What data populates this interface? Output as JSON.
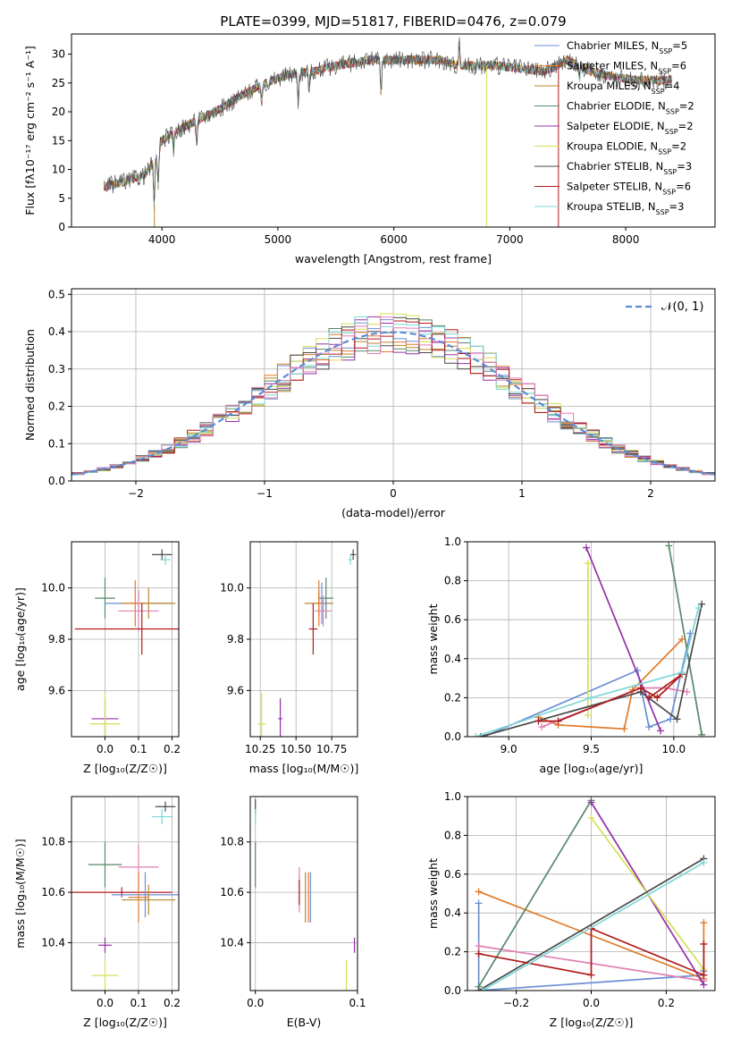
{
  "figure": {
    "title": "PLATE=0399, MJD=51817, FIBERID=0476, z=0.079"
  },
  "colors": {
    "Chabrier MILES": "#6a8fd6",
    "Salpeter MILES": "#e07b2b",
    "Kroupa MILES": "#b8872a",
    "Chabrier ELODIE": "#55896a",
    "Salpeter ELODIE": "#9530a8",
    "Kroupa ELODIE": "#d6e055",
    "Chabrier STELIB": "#4a4a4a",
    "Salpeter STELIB": "#b01c1c",
    "Kroupa STELIB": "#7fd6d6",
    "extra": "#e07fb5"
  },
  "chart_data": [
    {
      "id": "spectrum",
      "type": "line",
      "xlabel": "wavelength [Angstrom, rest frame]",
      "ylabel": "Flux [fλ10⁻¹⁷ erg cm⁻² s⁻¹ A⁻¹]",
      "xlim": [
        3220,
        8770
      ],
      "ylim": [
        0,
        33.5
      ],
      "xticks": [
        4000,
        5000,
        6000,
        7000,
        8000
      ],
      "yticks": [
        0,
        5,
        10,
        15,
        20,
        25,
        30
      ],
      "legend_position": "right",
      "legend": [
        {
          "label": "Chabrier MILES, N",
          "sub": "SSP",
          "tail": "=5",
          "key": "Chabrier MILES"
        },
        {
          "label": "Salpeter MILES, N",
          "sub": "SSP",
          "tail": "=6",
          "key": "Salpeter MILES"
        },
        {
          "label": "Kroupa MILES, N",
          "sub": "SSP",
          "tail": "=4",
          "key": "Kroupa MILES"
        },
        {
          "label": "Chabrier ELODIE, N",
          "sub": "SSP",
          "tail": "=2",
          "key": "Chabrier ELODIE"
        },
        {
          "label": "Salpeter ELODIE, N",
          "sub": "SSP",
          "tail": "=2",
          "key": "Salpeter ELODIE"
        },
        {
          "label": "Kroupa ELODIE, N",
          "sub": "SSP",
          "tail": "=2",
          "key": "Kroupa ELODIE"
        },
        {
          "label": "Chabrier STELIB, N",
          "sub": "SSP",
          "tail": "=3",
          "key": "Chabrier STELIB"
        },
        {
          "label": "Salpeter STELIB, N",
          "sub": "SSP",
          "tail": "=6",
          "key": "Salpeter STELIB"
        },
        {
          "label": "Kroupa STELIB, N",
          "sub": "SSP",
          "tail": "=3",
          "key": "Kroupa STELIB"
        }
      ],
      "continuum": [
        [
          3500,
          7
        ],
        [
          3700,
          8
        ],
        [
          3850,
          9
        ],
        [
          3950,
          12
        ],
        [
          4000,
          15
        ],
        [
          4150,
          17
        ],
        [
          4300,
          18.5
        ],
        [
          4500,
          20.5
        ],
        [
          4700,
          23
        ],
        [
          4900,
          25
        ],
        [
          5100,
          26.5
        ],
        [
          5300,
          27
        ],
        [
          5500,
          28
        ],
        [
          5800,
          29
        ],
        [
          6000,
          29
        ],
        [
          6200,
          29
        ],
        [
          6400,
          29
        ],
        [
          6550,
          28
        ],
        [
          6700,
          28
        ],
        [
          6900,
          28
        ],
        [
          7100,
          27.5
        ],
        [
          7300,
          27
        ],
        [
          7500,
          29
        ],
        [
          7700,
          27
        ],
        [
          7900,
          26
        ],
        [
          8100,
          25.5
        ],
        [
          8300,
          25.5
        ],
        [
          8400,
          25.5
        ]
      ],
      "absorption": [
        [
          3933,
          8
        ],
        [
          3968,
          6
        ],
        [
          4101,
          3
        ],
        [
          4300,
          4
        ],
        [
          4861,
          3
        ],
        [
          5175,
          5
        ],
        [
          5270,
          3
        ],
        [
          5890,
          6
        ],
        [
          6563,
          -4
        ],
        [
          7600,
          3
        ]
      ],
      "dropouts": [
        {
          "x": 3935,
          "key": "Kroupa MILES"
        },
        {
          "x": 6800,
          "key": "Kroupa ELODIE"
        },
        {
          "x": 7420,
          "key": "Salpeter STELIB"
        }
      ]
    },
    {
      "id": "residuals",
      "type": "step-histogram",
      "xlabel": "(data-model)/error",
      "ylabel": "Normed distribution",
      "xlim": [
        -2.5,
        2.5
      ],
      "ylim": [
        0,
        0.515
      ],
      "xticks": [
        -2,
        -1,
        0,
        1,
        2
      ],
      "yticks": [
        0.0,
        0.1,
        0.2,
        0.3,
        0.4,
        0.5
      ],
      "grid": true,
      "legend_position": "top-right",
      "reference_curve": {
        "label": "𝒩(0, 1)",
        "mean": 0,
        "sigma": 1
      },
      "bin_width": 0.1,
      "bin_range": [
        -2.5,
        2.5
      ],
      "series_keys": [
        "Chabrier MILES",
        "Salpeter MILES",
        "Kroupa MILES",
        "Chabrier ELODIE",
        "Salpeter ELODIE",
        "Kroupa ELODIE",
        "Chabrier STELIB",
        "Salpeter STELIB",
        "Kroupa STELIB",
        "extra"
      ]
    },
    {
      "id": "age-Z",
      "type": "errorbar",
      "xlabel": "Z [log₁₀(Z/Z☉)]",
      "ylabel": "age  [log₁₀(age/yr)]",
      "xlim": [
        -0.1,
        0.22
      ],
      "ylim": [
        9.42,
        10.18
      ],
      "xticks": [
        0.0,
        0.1,
        0.2
      ],
      "yticks": [
        9.6,
        9.8,
        10.0
      ],
      "grid": true,
      "points": [
        {
          "key": "Chabrier STELIB",
          "x": 0.17,
          "y": 10.13,
          "xerr": 0.03,
          "yerr": 0.02
        },
        {
          "key": "Kroupa STELIB",
          "x": 0.18,
          "y": 10.11,
          "xerr": 0.015,
          "yerr": 0.02
        },
        {
          "key": "Chabrier ELODIE",
          "x": 0.0,
          "y": 9.96,
          "xerr": 0.03,
          "yerr": 0.08
        },
        {
          "key": "Chabrier MILES",
          "x": 0.1,
          "y": 9.94,
          "xerr": 0.1,
          "yerr": 0.05
        },
        {
          "key": "Kroupa MILES",
          "x": 0.13,
          "y": 9.94,
          "xerr": 0.08,
          "yerr": 0.06
        },
        {
          "key": "Salpeter MILES",
          "x": 0.09,
          "y": 9.94,
          "xerr": 0.03,
          "yerr": 0.09
        },
        {
          "key": "extra",
          "x": 0.1,
          "y": 9.91,
          "xerr": 0.06,
          "yerr": 0.08
        },
        {
          "key": "Salpeter STELIB",
          "x": 0.11,
          "y": 9.84,
          "xerr": 0.2,
          "yerr": 0.1
        },
        {
          "key": "Salpeter ELODIE",
          "x": 0.0,
          "y": 9.49,
          "xerr": 0.04,
          "yerr": 0.08
        },
        {
          "key": "Kroupa ELODIE",
          "x": 0.0,
          "y": 9.47,
          "xerr": 0.045,
          "yerr": 0.12
        }
      ]
    },
    {
      "id": "age-mass",
      "type": "errorbar",
      "xlabel": "mass [log₁₀(M/M☉)]",
      "ylabel": "",
      "xlim": [
        10.18,
        10.93
      ],
      "ylim": [
        9.42,
        10.18
      ],
      "xticks": [
        10.25,
        10.5,
        10.75
      ],
      "yticks": [
        9.6,
        9.8,
        10.0
      ],
      "grid": true,
      "points": [
        {
          "key": "Chabrier STELIB",
          "x": 10.9,
          "y": 10.13,
          "xerr": 0.02,
          "yerr": 0.02
        },
        {
          "key": "Kroupa STELIB",
          "x": 10.88,
          "y": 10.11,
          "xerr": 0.015,
          "yerr": 0.02
        },
        {
          "key": "Chabrier ELODIE",
          "x": 10.71,
          "y": 9.96,
          "xerr": 0.05,
          "yerr": 0.08
        },
        {
          "key": "Kroupa MILES",
          "x": 10.66,
          "y": 9.94,
          "xerr": 0.1,
          "yerr": 0.05
        },
        {
          "key": "Chabrier MILES",
          "x": 10.68,
          "y": 9.94,
          "xerr": 0.04,
          "yerr": 0.08
        },
        {
          "key": "Salpeter MILES",
          "x": 10.66,
          "y": 9.94,
          "xerr": 0.03,
          "yerr": 0.09
        },
        {
          "key": "extra",
          "x": 10.69,
          "y": 9.91,
          "xerr": 0.06,
          "yerr": 0.06
        },
        {
          "key": "Salpeter STELIB",
          "x": 10.62,
          "y": 9.84,
          "xerr": 0.03,
          "yerr": 0.1
        },
        {
          "key": "Salpeter ELODIE",
          "x": 10.39,
          "y": 9.49,
          "xerr": 0.015,
          "yerr": 0.08
        },
        {
          "key": "Kroupa ELODIE",
          "x": 10.26,
          "y": 9.47,
          "xerr": 0.03,
          "yerr": 0.12
        }
      ]
    },
    {
      "id": "weight-age",
      "type": "line",
      "xlabel": "age  [log₁₀(age/yr)]",
      "ylabel": "mass weight",
      "xlim": [
        8.75,
        10.25
      ],
      "ylim": [
        0,
        1.0
      ],
      "xticks": [
        9.0,
        9.5,
        10.0
      ],
      "yticks": [
        0.0,
        0.2,
        0.4,
        0.6,
        0.8,
        1.0
      ],
      "grid": true,
      "series": [
        {
          "key": "Chabrier MILES",
          "points": [
            [
              8.85,
              0.0
            ],
            [
              9.78,
              0.34
            ],
            [
              9.85,
              0.05
            ],
            [
              9.98,
              0.09
            ],
            [
              10.1,
              0.53
            ]
          ]
        },
        {
          "key": "Salpeter MILES",
          "points": [
            [
              9.18,
              0.1
            ],
            [
              9.3,
              0.06
            ],
            [
              9.7,
              0.04
            ],
            [
              9.75,
              0.24
            ],
            [
              10.05,
              0.5
            ]
          ]
        },
        {
          "key": "extra",
          "points": [
            [
              9.2,
              0.05
            ],
            [
              9.8,
              0.25
            ],
            [
              9.95,
              0.25
            ],
            [
              10.08,
              0.23
            ]
          ]
        },
        {
          "key": "Chabrier ELODIE",
          "points": [
            [
              9.97,
              0.98
            ],
            [
              10.17,
              0.01
            ]
          ]
        },
        {
          "key": "Salpeter ELODIE",
          "points": [
            [
              9.47,
              0.97
            ],
            [
              9.92,
              0.03
            ]
          ]
        },
        {
          "key": "Kroupa ELODIE",
          "points": [
            [
              9.48,
              0.89
            ],
            [
              9.48,
              0.11
            ]
          ]
        },
        {
          "key": "Chabrier STELIB",
          "points": [
            [
              8.83,
              0.0
            ],
            [
              9.8,
              0.23
            ],
            [
              10.02,
              0.09
            ],
            [
              10.17,
              0.68
            ]
          ]
        },
        {
          "key": "Salpeter STELIB",
          "points": [
            [
              9.18,
              0.08
            ],
            [
              9.3,
              0.08
            ],
            [
              9.8,
              0.25
            ],
            [
              9.9,
              0.2
            ],
            [
              10.05,
              0.32
            ],
            [
              9.85,
              0.2
            ]
          ]
        },
        {
          "key": "Kroupa STELIB",
          "points": [
            [
              8.8,
              0.0
            ],
            [
              9.5,
              0.2
            ],
            [
              10.05,
              0.33
            ],
            [
              10.15,
              0.66
            ]
          ]
        }
      ]
    },
    {
      "id": "mass-Z",
      "type": "errorbar",
      "xlabel": "Z [log₁₀(Z/Z☉)]",
      "ylabel": "mass [log₁₀(M/M☉)]",
      "xlim": [
        -0.1,
        0.22
      ],
      "ylim": [
        10.21,
        10.98
      ],
      "xticks": [
        0.0,
        0.1,
        0.2
      ],
      "yticks": [
        10.4,
        10.6,
        10.8
      ],
      "grid": true,
      "points": [
        {
          "key": "Chabrier STELIB",
          "x": 0.18,
          "y": 10.94,
          "xerr": 0.03,
          "yerr": 0.02
        },
        {
          "key": "Kroupa STELIB",
          "x": 0.17,
          "y": 10.9,
          "xerr": 0.03,
          "yerr": 0.03
        },
        {
          "key": "Chabrier ELODIE",
          "x": 0.0,
          "y": 10.71,
          "xerr": 0.05,
          "yerr": 0.09
        },
        {
          "key": "extra",
          "x": 0.1,
          "y": 10.7,
          "xerr": 0.06,
          "yerr": 0.09
        },
        {
          "key": "Salpeter STELIB",
          "x": 0.05,
          "y": 10.6,
          "xerr": 0.15,
          "yerr": 0.02
        },
        {
          "key": "Chabrier MILES",
          "x": 0.12,
          "y": 10.59,
          "xerr": 0.1,
          "yerr": 0.09
        },
        {
          "key": "Kroupa MILES",
          "x": 0.13,
          "y": 10.57,
          "xerr": 0.08,
          "yerr": 0.06
        },
        {
          "key": "Salpeter MILES",
          "x": 0.1,
          "y": 10.58,
          "xerr": 0.03,
          "yerr": 0.1
        },
        {
          "key": "Salpeter ELODIE",
          "x": 0.0,
          "y": 10.39,
          "xerr": 0.02,
          "yerr": 0.03
        },
        {
          "key": "Kroupa ELODIE",
          "x": 0.0,
          "y": 10.27,
          "xerr": 0.04,
          "yerr": 0.06
        }
      ]
    },
    {
      "id": "mass-EBV",
      "type": "errorbar",
      "xlabel": "E(B-V)",
      "ylabel": "",
      "xlim": [
        -0.005,
        0.1
      ],
      "ylim": [
        10.21,
        10.98
      ],
      "xticks": [
        0.0,
        0.1
      ],
      "yticks": [
        10.4,
        10.6,
        10.8
      ],
      "grid": true,
      "points": [
        {
          "key": "Chabrier STELIB",
          "x": 0.0,
          "y": 10.94,
          "xerr": 0,
          "yerr": 0.03
        },
        {
          "key": "Kroupa STELIB",
          "x": 0.0,
          "y": 10.9,
          "xerr": 0,
          "yerr": 0.03
        },
        {
          "key": "Chabrier ELODIE",
          "x": 0.0,
          "y": 10.71,
          "xerr": 0,
          "yerr": 0.09
        },
        {
          "key": "extra",
          "x": 0.043,
          "y": 10.61,
          "xerr": 0,
          "yerr": 0.09
        },
        {
          "key": "Salpeter STELIB",
          "x": 0.043,
          "y": 10.6,
          "xerr": 0,
          "yerr": 0.05
        },
        {
          "key": "Kroupa MILES",
          "x": 0.049,
          "y": 10.58,
          "xerr": 0,
          "yerr": 0.1
        },
        {
          "key": "Salpeter MILES",
          "x": 0.052,
          "y": 10.58,
          "xerr": 0,
          "yerr": 0.1
        },
        {
          "key": "Chabrier MILES",
          "x": 0.054,
          "y": 10.58,
          "xerr": 0,
          "yerr": 0.1
        },
        {
          "key": "Salpeter ELODIE",
          "x": 0.097,
          "y": 10.39,
          "xerr": 0,
          "yerr": 0.03
        },
        {
          "key": "Kroupa ELODIE",
          "x": 0.089,
          "y": 10.27,
          "xerr": 0,
          "yerr": 0.06
        }
      ]
    },
    {
      "id": "weight-Z",
      "type": "line",
      "xlabel": "Z [log₁₀(Z/Z☉)]",
      "ylabel": "mass weight",
      "xlim": [
        -0.33,
        0.33
      ],
      "ylim": [
        0,
        1.0
      ],
      "xticks": [
        -0.2,
        0.0,
        0.2
      ],
      "yticks": [
        0.0,
        0.2,
        0.4,
        0.6,
        0.8,
        1.0
      ],
      "grid": true,
      "series": [
        {
          "key": "Chabrier MILES",
          "points": [
            [
              -0.3,
              0.45
            ],
            [
              -0.3,
              0.0
            ],
            [
              0.3,
              0.08
            ],
            [
              0.3,
              0.1
            ]
          ]
        },
        {
          "key": "Salpeter MILES",
          "points": [
            [
              -0.3,
              0.51
            ],
            [
              0.3,
              0.06
            ],
            [
              0.3,
              0.35
            ]
          ]
        },
        {
          "key": "extra",
          "points": [
            [
              -0.3,
              0.23
            ],
            [
              0.3,
              0.05
            ]
          ]
        },
        {
          "key": "Chabrier ELODIE",
          "points": [
            [
              -0.3,
              0.02
            ],
            [
              0.0,
              0.98
            ]
          ]
        },
        {
          "key": "Salpeter ELODIE",
          "points": [
            [
              0.0,
              0.97
            ],
            [
              0.3,
              0.03
            ]
          ]
        },
        {
          "key": "Kroupa ELODIE",
          "points": [
            [
              0.0,
              0.89
            ],
            [
              0.3,
              0.11
            ]
          ]
        },
        {
          "key": "Chabrier STELIB",
          "points": [
            [
              -0.3,
              0.0
            ],
            [
              0.3,
              0.68
            ]
          ]
        },
        {
          "key": "Salpeter STELIB",
          "points": [
            [
              -0.3,
              0.19
            ],
            [
              0.0,
              0.08
            ],
            [
              0.0,
              0.32
            ],
            [
              0.3,
              0.08
            ],
            [
              0.3,
              0.24
            ]
          ]
        },
        {
          "key": "Kroupa STELIB",
          "points": [
            [
              -0.29,
              0.0
            ],
            [
              0.3,
              0.66
            ]
          ]
        }
      ]
    }
  ]
}
